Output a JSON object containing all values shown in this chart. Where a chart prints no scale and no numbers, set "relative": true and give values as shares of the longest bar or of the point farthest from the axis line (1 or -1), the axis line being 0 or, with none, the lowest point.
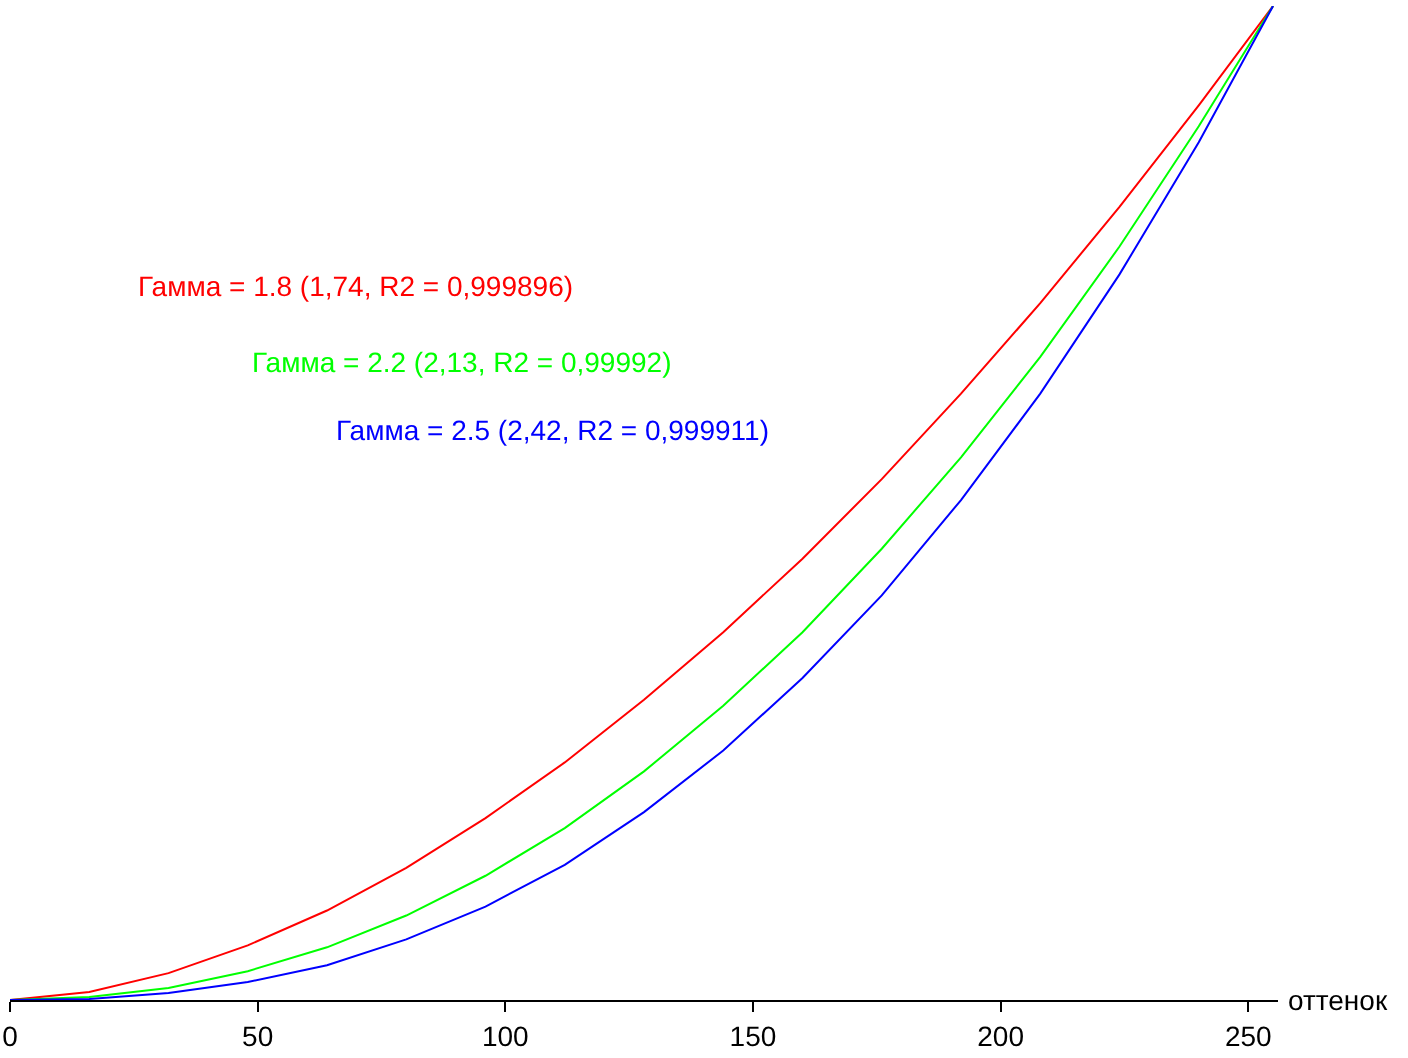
{
  "chart_data": {
    "type": "line",
    "relative": true,
    "xlabel": "оттенок",
    "x": [
      0,
      16,
      32,
      48,
      64,
      80,
      96,
      112,
      128,
      144,
      160,
      176,
      192,
      208,
      224,
      240,
      255
    ],
    "xlim": [
      0,
      256
    ],
    "xticks": [
      0,
      50,
      100,
      150,
      200,
      250
    ],
    "grid": false,
    "legend": false,
    "marker": "none",
    "line_style": "solid",
    "series": [
      {
        "name": "Гамма = 1.8 (1,74, R2 = 0,999896)",
        "color": "#ff0000",
        "values": [
          0,
          0.008,
          0.027,
          0.055,
          0.09,
          0.133,
          0.183,
          0.239,
          0.302,
          0.37,
          0.444,
          0.524,
          0.61,
          0.701,
          0.798,
          0.9,
          1
        ]
      },
      {
        "name": "Гамма = 2.2 (2,13, R2 = 0,99992)",
        "color": "#00ff00",
        "values": [
          0,
          0.003,
          0.012,
          0.029,
          0.053,
          0.085,
          0.125,
          0.173,
          0.23,
          0.296,
          0.37,
          0.454,
          0.546,
          0.647,
          0.758,
          0.879,
          1
        ]
      },
      {
        "name": "Гамма = 2.5 (2,42, R2 = 0,999911)",
        "color": "#0000ff",
        "values": [
          0,
          0.001,
          0.007,
          0.018,
          0.035,
          0.061,
          0.094,
          0.136,
          0.189,
          0.251,
          0.324,
          0.407,
          0.503,
          0.61,
          0.73,
          0.863,
          1
        ]
      }
    ]
  }
}
